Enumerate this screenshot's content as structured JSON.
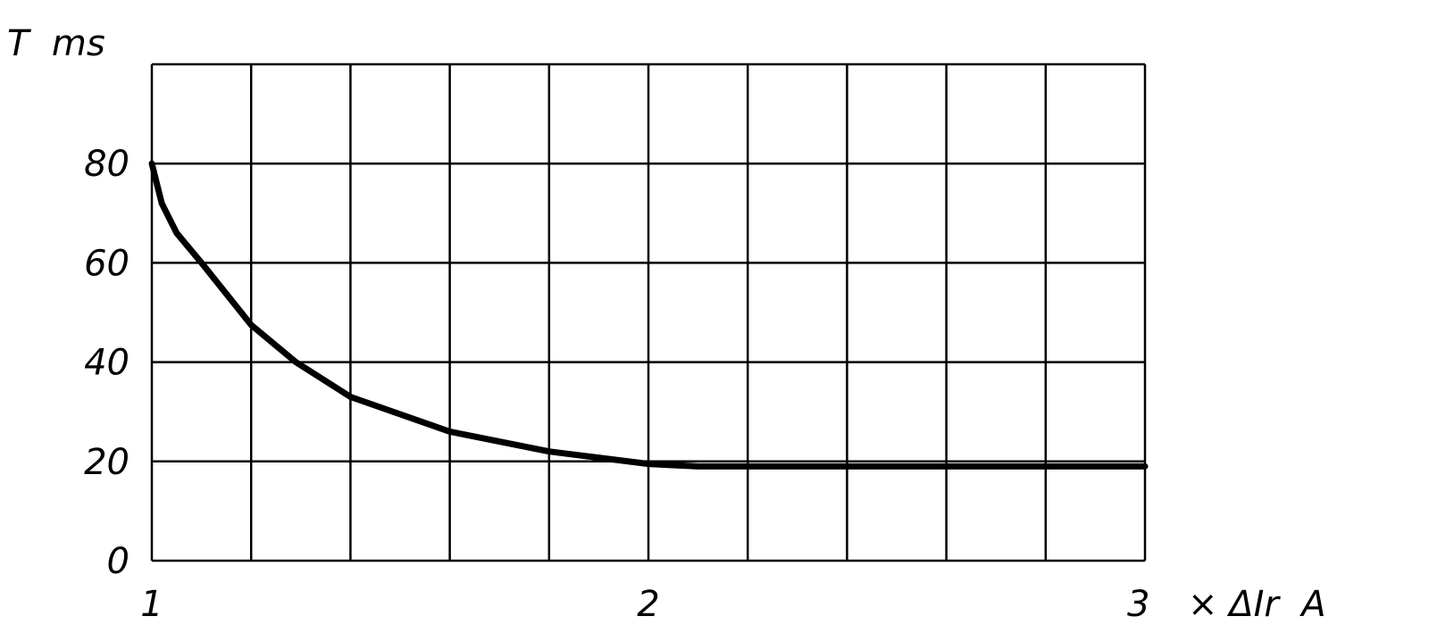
{
  "chart_data": {
    "type": "line",
    "title": "",
    "ylabel": "T  ms",
    "xlabel": "× ΔIr  A",
    "xlim": [
      1,
      3
    ],
    "ylim": [
      0,
      100
    ],
    "x_ticks": [
      1,
      2,
      3
    ],
    "x_tick_labels": [
      "1",
      "2",
      "3"
    ],
    "y_ticks": [
      0,
      20,
      40,
      60,
      80
    ],
    "y_tick_labels": [
      "0",
      "20",
      "40",
      "60",
      "80"
    ],
    "grid": true,
    "x_grid_step": 0.2,
    "y_grid_step": 20,
    "line_color": "#000000",
    "series": [
      {
        "x": [
          1.0,
          1.02,
          1.05,
          1.1,
          1.2,
          1.29,
          1.4,
          1.6,
          1.8,
          2.0,
          2.1,
          2.5,
          3.0
        ],
        "y": [
          80,
          72,
          66,
          60,
          47.5,
          40,
          33,
          26,
          22,
          19.5,
          19,
          19,
          19
        ]
      }
    ]
  }
}
